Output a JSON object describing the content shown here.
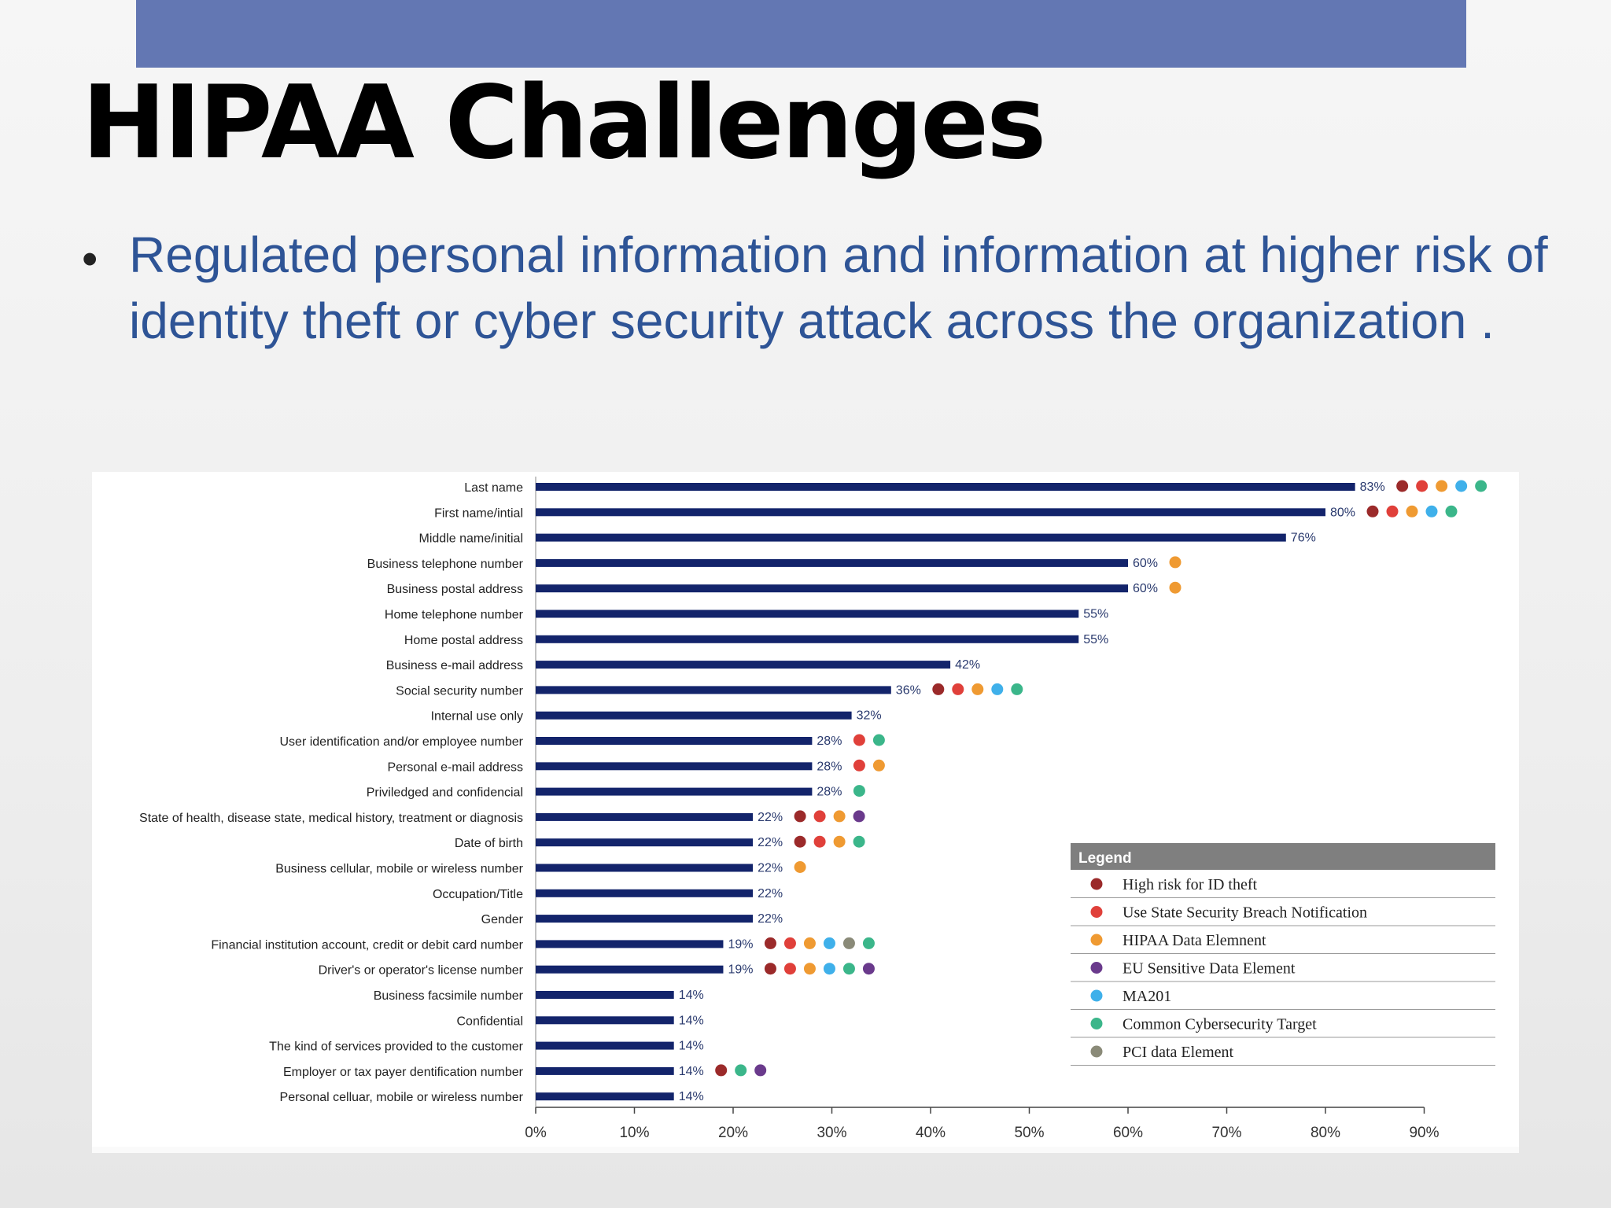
{
  "slide": {
    "title": "HIPAA Challenges",
    "bullet": "Regulated personal information and information at higher risk of identity theft or cyber security attack across the organization ."
  },
  "colors": {
    "top_bar": "#6377b3",
    "bar": "#13246b",
    "bullet_text": "#2e5496",
    "legend_header": "#7f7f7f"
  },
  "chart_data": {
    "type": "bar",
    "orientation": "horizontal",
    "categories": [
      "Last name",
      "First name/intial",
      "Middle name/initial",
      "Business telephone number",
      "Business postal address",
      "Home telephone number",
      "Home postal address",
      "Business e-mail address",
      "Social security number",
      "Internal use only",
      "User identification and/or employee number",
      "Personal e-mail address",
      "Priviledged and confidencial",
      "State of health, disease state, medical history, treatment or diagnosis",
      "Date of birth",
      "Business cellular, mobile or wireless number",
      "Occupation/Title",
      "Gender",
      "Financial institution account, credit or debit card number",
      "Driver's or operator's license number",
      "Business facsimile number",
      "Confidential",
      "The kind of services provided to the customer",
      "Employer or tax payer dentification number",
      "Personal celluar, mobile or wireless number"
    ],
    "values": [
      83,
      80,
      76,
      60,
      60,
      55,
      55,
      42,
      36,
      32,
      28,
      28,
      28,
      22,
      22,
      22,
      22,
      22,
      19,
      19,
      14,
      14,
      14,
      14,
      14
    ],
    "value_labels": [
      "83%",
      "80%",
      "76%",
      "60%",
      "60%",
      "55%",
      "55%",
      "42%",
      "36%",
      "32%",
      "28%",
      "28%",
      "28%",
      "22%",
      "22%",
      "22%",
      "22%",
      "22%",
      "19%",
      "19%",
      "14%",
      "14%",
      "14%",
      "14%",
      "14%"
    ],
    "flags": [
      [
        "id_theft",
        "breach",
        "hipaa",
        "ma201",
        "cyber"
      ],
      [
        "id_theft",
        "breach",
        "hipaa",
        "ma201",
        "cyber"
      ],
      [],
      [
        "hipaa"
      ],
      [
        "hipaa"
      ],
      [],
      [],
      [],
      [
        "id_theft",
        "breach",
        "hipaa",
        "ma201",
        "cyber"
      ],
      [],
      [
        "breach",
        "cyber"
      ],
      [
        "breach",
        "hipaa"
      ],
      [
        "cyber"
      ],
      [
        "id_theft",
        "breach",
        "hipaa",
        "eu"
      ],
      [
        "id_theft",
        "breach",
        "hipaa",
        "cyber"
      ],
      [
        "hipaa"
      ],
      [],
      [],
      [
        "id_theft",
        "breach",
        "hipaa",
        "ma201",
        "pci",
        "cyber"
      ],
      [
        "id_theft",
        "breach",
        "hipaa",
        "ma201",
        "cyber",
        "eu"
      ],
      [],
      [],
      [],
      [
        "id_theft",
        "cyber",
        "eu"
      ],
      []
    ],
    "x_ticks": [
      "0%",
      "10%",
      "20%",
      "30%",
      "40%",
      "50%",
      "60%",
      "70%",
      "80%",
      "90%"
    ],
    "xlim": [
      0,
      90
    ],
    "legend": {
      "title": "Legend",
      "position": "bottom-right",
      "items": [
        {
          "key": "id_theft",
          "label": "High risk for ID theft",
          "color": "#9b2a2a"
        },
        {
          "key": "breach",
          "label": "Use State Security Breach Notification",
          "color": "#e0403a"
        },
        {
          "key": "hipaa",
          "label": "HIPAA Data Elemnent",
          "color": "#ef9a32"
        },
        {
          "key": "eu",
          "label": "EU Sensitive Data Element",
          "color": "#6a3a8c"
        },
        {
          "key": "ma201",
          "label": "MA201",
          "color": "#3fb0ea"
        },
        {
          "key": "cyber",
          "label": "Common Cybersecurity Target",
          "color": "#3bb68a"
        },
        {
          "key": "pci",
          "label": "PCI data Element",
          "color": "#8a8a78"
        }
      ]
    }
  }
}
